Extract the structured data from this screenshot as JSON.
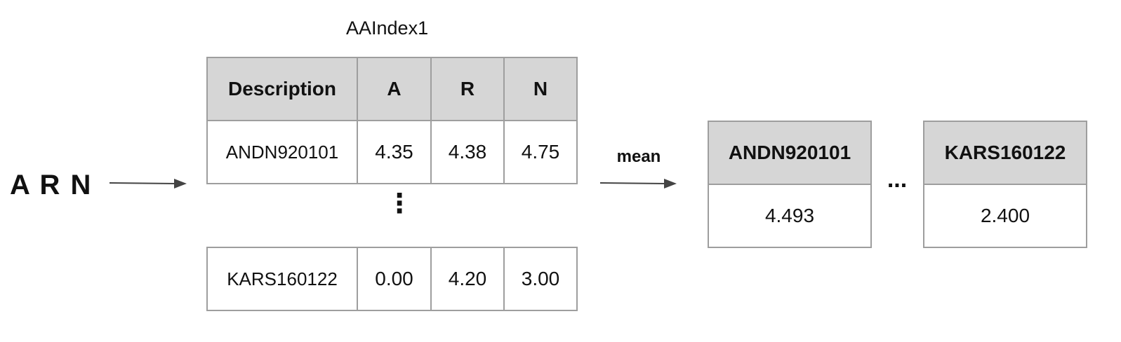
{
  "input_sequence": "A R N",
  "index_table": {
    "title": "AAIndex1",
    "headers": [
      "Description",
      "A",
      "R",
      "N"
    ],
    "rows": [
      [
        "ANDN920101",
        "4.35",
        "4.38",
        "4.75"
      ]
    ],
    "ellipsis": "⋮",
    "last_row": [
      "KARS160122",
      "0.00",
      "4.20",
      "3.00"
    ]
  },
  "operation_label": "mean",
  "results": [
    {
      "header": "ANDN920101",
      "value": "4.493"
    },
    {
      "header": "KARS160122",
      "value": "2.400"
    }
  ],
  "results_ellipsis": "..."
}
